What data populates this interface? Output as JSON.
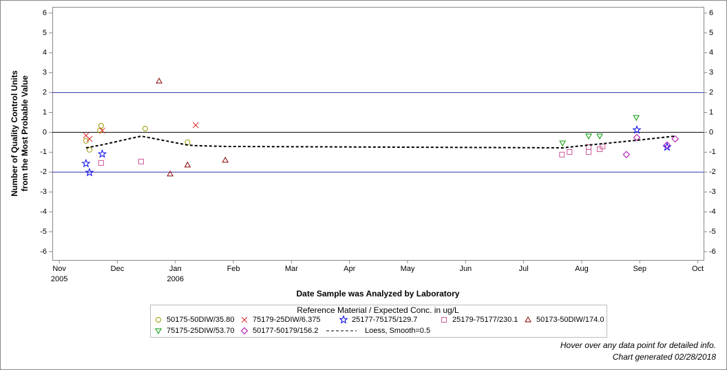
{
  "chart_data": {
    "type": "scatter",
    "xlabel": "Date Sample was Analyzed by Laboratory",
    "ylabel": [
      "Number of Quality Control Units",
      "from the Most Probable Value"
    ],
    "xlim": [
      -0.12,
      11.1
    ],
    "xticks": [
      {
        "value": 0,
        "label": "Nov",
        "sublabel": "2005"
      },
      {
        "value": 1,
        "label": "Dec"
      },
      {
        "value": 2,
        "label": "Jan",
        "sublabel": "2006"
      },
      {
        "value": 3,
        "label": "Feb"
      },
      {
        "value": 4,
        "label": "Mar"
      },
      {
        "value": 5,
        "label": "Apr"
      },
      {
        "value": 6,
        "label": "May"
      },
      {
        "value": 7,
        "label": "Jun"
      },
      {
        "value": 8,
        "label": "Jul"
      },
      {
        "value": 9,
        "label": "Aug"
      },
      {
        "value": 10,
        "label": "Sep"
      },
      {
        "value": 11,
        "label": "Oct"
      }
    ],
    "ylim": [
      -6.42,
      6.31
    ],
    "yticks": [
      -6,
      -5,
      -4,
      -3,
      -2,
      -1,
      0,
      1,
      2,
      3,
      4,
      5,
      6
    ],
    "reference_lines": [
      {
        "value": 2,
        "color": "#3333aa"
      },
      {
        "value": 0,
        "color": "#000000"
      },
      {
        "value": -2,
        "color": "#3333aa"
      }
    ],
    "legend_title": "Reference Material / Expected Conc. in ug/L",
    "series": [
      {
        "name": "50175-50DIW/35.80",
        "color": "#999900",
        "marker": "circle",
        "x": [
          0.46,
          0.52,
          0.7,
          0.72,
          1.48,
          2.21
        ],
        "values": [
          -0.43,
          -0.88,
          0.09,
          0.33,
          0.19,
          -0.5
        ]
      },
      {
        "name": "75179-25DIW/6.375",
        "color": "#dd2222",
        "marker": "x",
        "x": [
          0.46,
          0.52,
          0.74,
          2.35
        ],
        "values": [
          -0.16,
          -0.33,
          0.09,
          0.36
        ]
      },
      {
        "name": "25177-75175/129.7",
        "color": "#0000ee",
        "marker": "star",
        "x": [
          0.46,
          0.52,
          0.74,
          9.95,
          10.47
        ],
        "values": [
          -1.57,
          -2.02,
          -1.09,
          0.12,
          -0.74
        ]
      },
      {
        "name": "25179-75177/230.1",
        "color": "#cc5599",
        "marker": "square",
        "x": [
          0.72,
          1.41,
          8.66,
          8.79,
          9.12,
          9.12,
          9.31,
          9.36
        ],
        "values": [
          -1.54,
          -1.47,
          -1.12,
          -0.99,
          -0.74,
          -0.99,
          -0.85,
          -0.71
        ]
      },
      {
        "name": "50173-50DIW/174.0",
        "color": "#880000",
        "marker": "triangle",
        "x": [
          1.72,
          1.91,
          2.21,
          2.86
        ],
        "values": [
          2.58,
          -2.09,
          -1.64,
          -1.4
        ]
      },
      {
        "name": "75175-25DIW/53.70",
        "color": "#009900",
        "marker": "triangle-down",
        "x": [
          8.67,
          9.12,
          9.31,
          9.94
        ],
        "values": [
          -0.54,
          -0.19,
          -0.19,
          0.74
        ]
      },
      {
        "name": "50177-50179/156.2",
        "color": "#aa00aa",
        "marker": "diamond",
        "x": [
          9.77,
          9.95,
          10.47,
          10.61
        ],
        "values": [
          -1.12,
          -0.26,
          -0.64,
          -0.33
        ]
      },
      {
        "name": "Loess, Smooth=0.5",
        "color": "#000000",
        "marker": "dashed-line",
        "x": [
          0.46,
          0.72,
          1.41,
          2.21,
          2.35,
          2.86,
          8.67,
          9.12,
          9.95,
          10.61
        ],
        "values": [
          -0.78,
          -0.64,
          -0.19,
          -0.64,
          -0.67,
          -0.71,
          -0.78,
          -0.64,
          -0.4,
          -0.19
        ]
      }
    ],
    "footer": [
      "Hover over any data point for detailed info.",
      "Chart generated 02/28/2018"
    ]
  }
}
